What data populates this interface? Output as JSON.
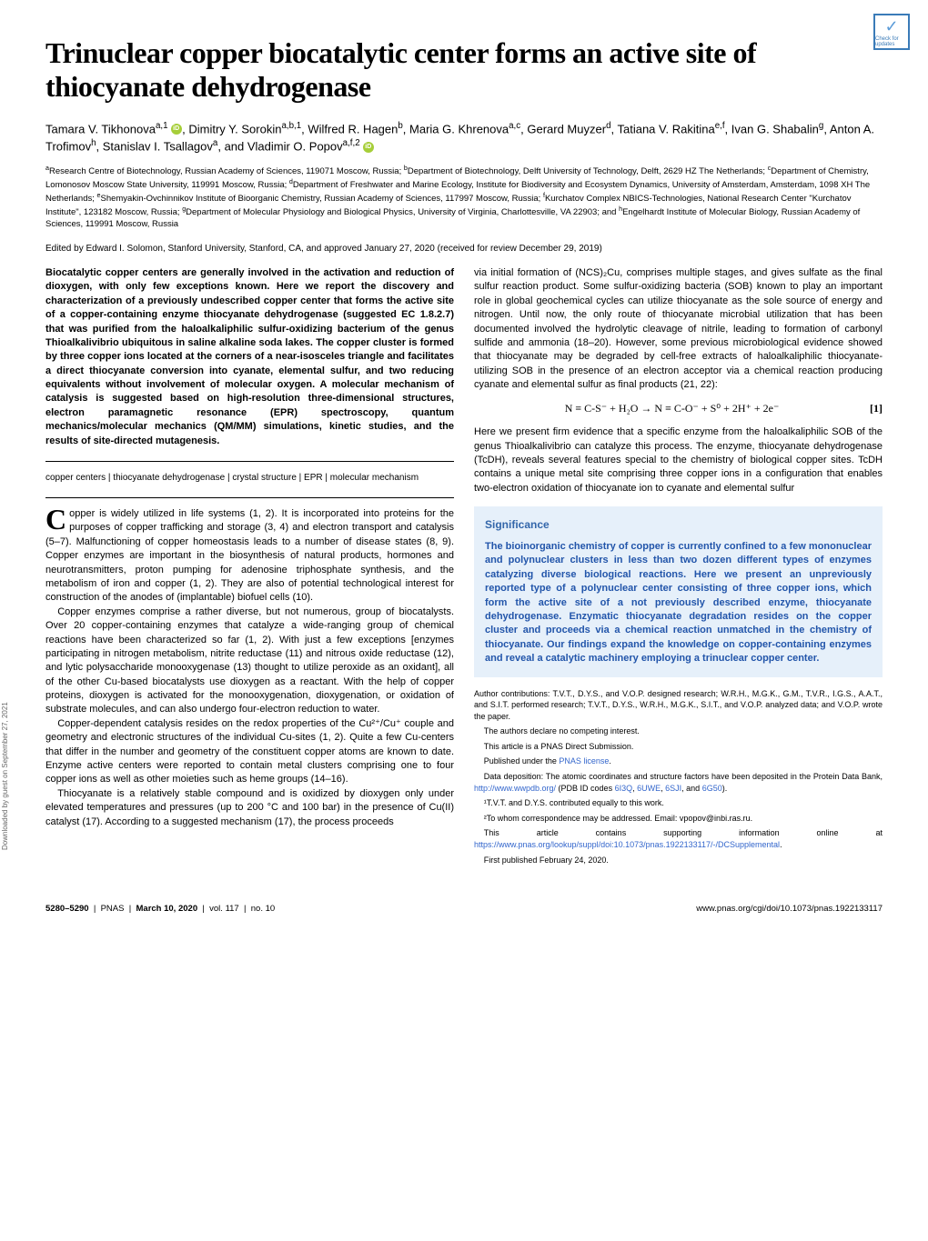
{
  "badge": {
    "label": "Check for updates"
  },
  "title": "Trinuclear copper biocatalytic center forms an active site of thiocyanate dehydrogenase",
  "authors_html": "Tamara V. Tikhonova<sup>a,1</sup> <span class='orcid' data-name='orcid-icon'></span>, Dimitry Y. Sorokin<sup>a,b,1</sup>, Wilfred R. Hagen<sup>b</sup>, Maria G. Khrenova<sup>a,c</sup>, Gerard Muyzer<sup>d</sup>, Tatiana V. Rakitina<sup>e,f</sup>, Ivan G. Shabalin<sup>g</sup>, Anton A. Trofimov<sup>h</sup>, Stanislav I. Tsallagov<sup>a</sup>, and Vladimir O. Popov<sup>a,f,2</sup> <span class='orcid' data-name='orcid-icon'></span>",
  "affiliations_html": "<sup>a</sup>Research Centre of Biotechnology, Russian Academy of Sciences, 119071 Moscow, Russia; <sup>b</sup>Department of Biotechnology, Delft University of Technology, Delft, 2629 HZ The Netherlands; <sup>c</sup>Department of Chemistry, Lomonosov Moscow State University, 119991 Moscow, Russia; <sup>d</sup>Department of Freshwater and Marine Ecology, Institute for Biodiversity and Ecosystem Dynamics, University of Amsterdam, Amsterdam, 1098 XH The Netherlands; <sup>e</sup>Shemyakin-Ovchinnikov Institute of Bioorganic Chemistry, Russian Academy of Sciences, 117997 Moscow, Russia; <sup>f</sup>Kurchatov Complex NBICS-Technologies, National Research Center \"Kurchatov Institute\", 123182 Moscow, Russia; <sup>g</sup>Department of Molecular Physiology and Biological Physics, University of Virginia, Charlottesville, VA 22903; and <sup>h</sup>Engelhardt Institute of Molecular Biology, Russian Academy of Sciences, 119991 Moscow, Russia",
  "edited": "Edited by Edward I. Solomon, Stanford University, Stanford, CA, and approved January 27, 2020 (received for review December 29, 2019)",
  "abstract": "Biocatalytic copper centers are generally involved in the activation and reduction of dioxygen, with only few exceptions known. Here we report the discovery and characterization of a previously undescribed copper center that forms the active site of a copper-containing enzyme thiocyanate dehydrogenase (suggested EC 1.8.2.7) that was purified from the haloalkaliphilic sulfur-oxidizing bacterium of the genus Thioalkalivibrio ubiquitous in saline alkaline soda lakes. The copper cluster is formed by three copper ions located at the corners of a near-isosceles triangle and facilitates a direct thiocyanate conversion into cyanate, elemental sulfur, and two reducing equivalents without involvement of molecular oxygen. A molecular mechanism of catalysis is suggested based on high-resolution three-dimensional structures, electron paramagnetic resonance (EPR) spectroscopy, quantum mechanics/molecular mechanics (QM/MM) simulations, kinetic studies, and the results of site-directed mutagenesis.",
  "keywords": "copper centers | thiocyanate dehydrogenase | crystal structure | EPR | molecular mechanism",
  "left_paras": [
    "Copper is widely utilized in life systems (1, 2). It is incorporated into proteins for the purposes of copper trafficking and storage (3, 4) and electron transport and catalysis (5–7). Malfunctioning of copper homeostasis leads to a number of disease states (8, 9). Copper enzymes are important in the biosynthesis of natural products, hormones and neurotransmitters, proton pumping for adenosine triphosphate synthesis, and the metabolism of iron and copper (1, 2). They are also of potential technological interest for construction of the anodes of (implantable) biofuel cells (10).",
    "Copper enzymes comprise a rather diverse, but not numerous, group of biocatalysts. Over 20 copper-containing enzymes that catalyze a wide-ranging group of chemical reactions have been characterized so far (1, 2). With just a few exceptions [enzymes participating in nitrogen metabolism, nitrite reductase (11) and nitrous oxide reductase (12), and lytic polysaccharide monooxygenase (13) thought to utilize peroxide as an oxidant], all of the other Cu-based biocatalysts use dioxygen as a reactant. With the help of copper proteins, dioxygen is activated for the monooxygenation, dioxygenation, or oxidation of substrate molecules, and can also undergo four-electron reduction to water.",
    "Copper-dependent catalysis resides on the redox properties of the Cu²⁺/Cu⁺ couple and geometry and electronic structures of the individual Cu-sites (1, 2). Quite a few Cu-centers that differ in the number and geometry of the constituent copper atoms are known to date. Enzyme active centers were reported to contain metal clusters comprising one to four copper ions as well as other moieties such as heme groups (14–16).",
    "Thiocyanate is a relatively stable compound and is oxidized by dioxygen only under elevated temperatures and pressures (up to 200 °C and 100 bar) in the presence of Cu(II) catalyst (17). According to a suggested mechanism (17), the process proceeds"
  ],
  "right_paras_top": [
    "via initial formation of (NCS)₂Cu, comprises multiple stages, and gives sulfate as the final sulfur reaction product. Some sulfur-oxidizing bacteria (SOB) known to play an important role in global geochemical cycles can utilize thiocyanate as the sole source of energy and nitrogen. Until now, the only route of thiocyanate microbial utilization that has been documented involved the hydrolytic cleavage of nitrile, leading to formation of carbonyl sulfide and ammonia (18–20). However, some previous microbiological evidence showed that thiocyanate may be degraded by cell-free extracts of haloalkaliphilic thiocyanate-utilizing SOB in the presence of an electron acceptor via a chemical reaction producing cyanate and elemental sulfur as final products (21, 22):"
  ],
  "equation": "N ≡ C-S⁻ + H₂O → N ≡ C-O⁻ + S⁰ + 2H⁺ + 2e⁻",
  "eq_number": "[1]",
  "right_paras_mid": [
    "Here we present firm evidence that a specific enzyme from the haloalkaliphilic SOB of the genus Thioalkalivibrio can catalyze this process. The enzyme, thiocyanate dehydrogenase (TcDH), reveals several features special to the chemistry of biological copper sites. TcDH contains a unique metal site comprising three copper ions in a configuration that enables two-electron oxidation of thiocyanate ion to cyanate and elemental sulfur"
  ],
  "significance": {
    "title": "Significance",
    "text": "The bioinorganic chemistry of copper is currently confined to a few mononuclear and polynuclear clusters in less than two dozen different types of enzymes catalyzing diverse biological reactions. Here we present an unpreviously reported type of a polynuclear center consisting of three copper ions, which form the active site of a not previously described enzyme, thiocyanate dehydrogenase. Enzymatic thiocyanate degradation resides on the copper cluster and proceeds via a chemical reaction unmatched in the chemistry of thiocyanate. Our findings expand the knowledge on copper-containing enzymes and reveal a catalytic machinery employing a trinuclear copper center."
  },
  "footnotes": [
    "Author contributions: T.V.T., D.Y.S., and V.O.P. designed research; W.R.H., M.G.K., G.M., T.V.R., I.G.S., A.A.T., and S.I.T. performed research; T.V.T., D.Y.S., W.R.H., M.G.K., S.I.T., and V.O.P. analyzed data; and V.O.P. wrote the paper.",
    "The authors declare no competing interest.",
    "This article is a PNAS Direct Submission."
  ],
  "footnote_license_prefix": "Published under the ",
  "footnote_license_link": "PNAS license",
  "footnote_license_suffix": ".",
  "footnote_data_prefix": "Data deposition: The atomic coordinates and structure factors have been deposited in the Protein Data Bank, ",
  "footnote_data_link1": "http://www.wwpdb.org/",
  "footnote_data_mid": " (PDB ID codes ",
  "pdb1": "6I3Q",
  "pdb2": "6UWE",
  "pdb3": "6SJI",
  "pdb_and": ", and ",
  "pdb4": "6G50",
  "footnote_data_suffix": ").",
  "footnote_eq": "¹T.V.T. and D.Y.S. contributed equally to this work.",
  "footnote_corr": "²To whom correspondence may be addressed. Email: vpopov@inbi.ras.ru.",
  "footnote_supp_prefix": "This article contains supporting information online at ",
  "footnote_supp_link": "https://www.pnas.org/lookup/suppl/doi:10.1073/pnas.1922133117/-/DCSupplemental",
  "footnote_supp_suffix": ".",
  "footnote_pub": "First published February 24, 2020.",
  "footer": {
    "pages": "5280–5290",
    "journal": "PNAS",
    "date": "March 10, 2020",
    "vol": "vol. 117",
    "issue": "no. 10",
    "url": "www.pnas.org/cgi/doi/10.1073/pnas.1922133117"
  },
  "sidebar": "Downloaded by guest on September 27, 2021"
}
